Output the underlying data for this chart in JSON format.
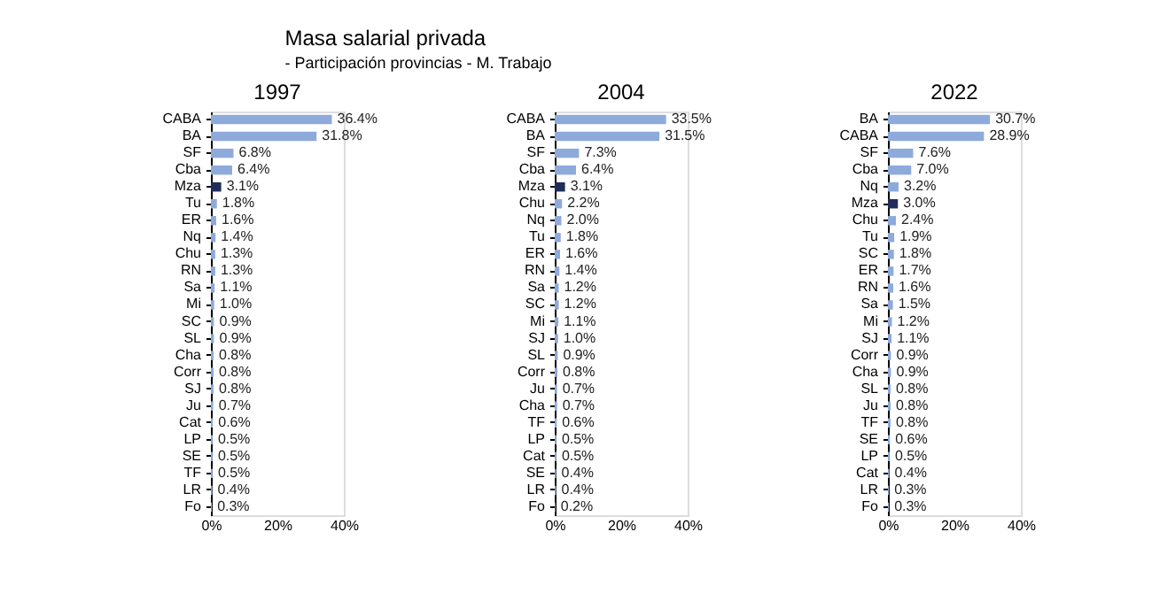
{
  "chart_data": [
    {
      "type": "bar",
      "orientation": "horizontal",
      "title": "1997",
      "annotations": [
        "Masa salarial privada",
        "- Participación provincias - M. Trabajo"
      ],
      "categories": [
        "CABA",
        "BA",
        "SF",
        "Cba",
        "Mza",
        "Tu",
        "ER",
        "Nq",
        "Chu",
        "RN",
        "Sa",
        "Mi",
        "SC",
        "SL",
        "Cha",
        "Corr",
        "SJ",
        "Ju",
        "Cat",
        "LP",
        "SE",
        "TF",
        "LR",
        "Fo"
      ],
      "values": [
        36.4,
        31.8,
        6.8,
        6.4,
        3.1,
        1.8,
        1.6,
        1.4,
        1.3,
        1.3,
        1.1,
        1.0,
        0.9,
        0.9,
        0.8,
        0.8,
        0.8,
        0.7,
        0.6,
        0.5,
        0.5,
        0.5,
        0.4,
        0.3
      ],
      "value_labels": [
        "36.4%",
        "31.8%",
        "6.8%",
        "6.4%",
        "3.1%",
        "1.8%",
        "1.6%",
        "1.4%",
        "1.3%",
        "1.3%",
        "1.1%",
        "1.0%",
        "0.9%",
        "0.9%",
        "0.8%",
        "0.8%",
        "0.8%",
        "0.7%",
        "0.6%",
        "0.5%",
        "0.5%",
        "0.5%",
        "0.4%",
        "0.3%"
      ],
      "colors": [
        "#8eaadb",
        "#8eaadb",
        "#8eaadb",
        "#8eaadb",
        "#1f2d5a",
        "#8eaadb",
        "#8eaadb",
        "#8eaadb",
        "#8eaadb",
        "#8eaadb",
        "#8eaadb",
        "#8eaadb",
        "#8eaadb",
        "#8eaadb",
        "#8eaadb",
        "#8eaadb",
        "#8eaadb",
        "#8eaadb",
        "#8eaadb",
        "#8eaadb",
        "#8eaadb",
        "#8eaadb",
        "#8eaadb",
        "#8eaadb"
      ],
      "xlim": [
        0,
        40
      ],
      "xticks": [
        {
          "value": 0,
          "label": "0%"
        },
        {
          "value": 20,
          "label": "20%"
        },
        {
          "value": 40,
          "label": "40%"
        }
      ]
    },
    {
      "type": "bar",
      "orientation": "horizontal",
      "title": "2004",
      "categories": [
        "CABA",
        "BA",
        "SF",
        "Cba",
        "Mza",
        "Chu",
        "Nq",
        "Tu",
        "ER",
        "RN",
        "Sa",
        "SC",
        "Mi",
        "SJ",
        "SL",
        "Corr",
        "Ju",
        "Cha",
        "TF",
        "LP",
        "Cat",
        "SE",
        "LR",
        "Fo"
      ],
      "values": [
        33.5,
        31.5,
        7.3,
        6.4,
        3.1,
        2.2,
        2.0,
        1.8,
        1.6,
        1.4,
        1.2,
        1.2,
        1.1,
        1.0,
        0.9,
        0.8,
        0.7,
        0.7,
        0.6,
        0.5,
        0.5,
        0.4,
        0.4,
        0.2
      ],
      "value_labels": [
        "33.5%",
        "31.5%",
        "7.3%",
        "6.4%",
        "3.1%",
        "2.2%",
        "2.0%",
        "1.8%",
        "1.6%",
        "1.4%",
        "1.2%",
        "1.2%",
        "1.1%",
        "1.0%",
        "0.9%",
        "0.8%",
        "0.7%",
        "0.7%",
        "0.6%",
        "0.5%",
        "0.5%",
        "0.4%",
        "0.4%",
        "0.2%"
      ],
      "colors": [
        "#8eaadb",
        "#8eaadb",
        "#8eaadb",
        "#8eaadb",
        "#1f2d5a",
        "#8eaadb",
        "#8eaadb",
        "#8eaadb",
        "#8eaadb",
        "#8eaadb",
        "#8eaadb",
        "#8eaadb",
        "#8eaadb",
        "#8eaadb",
        "#8eaadb",
        "#8eaadb",
        "#8eaadb",
        "#8eaadb",
        "#8eaadb",
        "#8eaadb",
        "#8eaadb",
        "#8eaadb",
        "#8eaadb",
        "#8eaadb"
      ],
      "xlim": [
        0,
        40
      ],
      "xticks": [
        {
          "value": 0,
          "label": "0%"
        },
        {
          "value": 20,
          "label": "20%"
        },
        {
          "value": 40,
          "label": "40%"
        }
      ]
    },
    {
      "type": "bar",
      "orientation": "horizontal",
      "title": "2022",
      "categories": [
        "BA",
        "CABA",
        "SF",
        "Cba",
        "Nq",
        "Mza",
        "Chu",
        "Tu",
        "SC",
        "ER",
        "RN",
        "Sa",
        "Mi",
        "SJ",
        "Corr",
        "Cha",
        "SL",
        "Ju",
        "TF",
        "SE",
        "LP",
        "Cat",
        "LR",
        "Fo"
      ],
      "values": [
        30.7,
        28.9,
        7.6,
        7.0,
        3.2,
        3.0,
        2.4,
        1.9,
        1.8,
        1.7,
        1.6,
        1.5,
        1.2,
        1.1,
        0.9,
        0.9,
        0.8,
        0.8,
        0.8,
        0.6,
        0.5,
        0.4,
        0.3,
        0.3
      ],
      "value_labels": [
        "30.7%",
        "28.9%",
        "7.6%",
        "7.0%",
        "3.2%",
        "3.0%",
        "2.4%",
        "1.9%",
        "1.8%",
        "1.7%",
        "1.6%",
        "1.5%",
        "1.2%",
        "1.1%",
        "0.9%",
        "0.9%",
        "0.8%",
        "0.8%",
        "0.8%",
        "0.6%",
        "0.5%",
        "0.4%",
        "0.3%",
        "0.3%"
      ],
      "colors": [
        "#8eaadb",
        "#8eaadb",
        "#8eaadb",
        "#8eaadb",
        "#8eaadb",
        "#1f2d5a",
        "#8eaadb",
        "#8eaadb",
        "#8eaadb",
        "#8eaadb",
        "#8eaadb",
        "#8eaadb",
        "#8eaadb",
        "#8eaadb",
        "#8eaadb",
        "#8eaadb",
        "#8eaadb",
        "#8eaadb",
        "#8eaadb",
        "#8eaadb",
        "#8eaadb",
        "#8eaadb",
        "#8eaadb",
        "#8eaadb"
      ],
      "xlim": [
        0,
        40
      ],
      "xticks": [
        {
          "value": 0,
          "label": "0%"
        },
        {
          "value": 20,
          "label": "20%"
        },
        {
          "value": 40,
          "label": "40%"
        }
      ]
    }
  ]
}
